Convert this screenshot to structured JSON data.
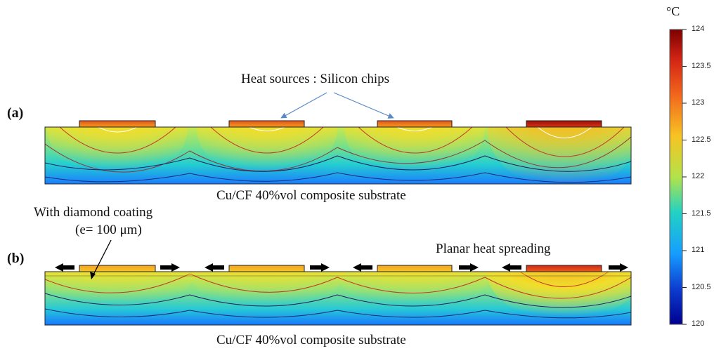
{
  "panels": [
    {
      "label": "(a)",
      "substrate_caption": "Cu/CF 40%vol composite substrate",
      "annotation": "Heat sources : Silicon chips"
    },
    {
      "label": "(b)",
      "substrate_caption": "Cu/CF 40%vol composite substrate",
      "annotation": "Planar heat spreading",
      "coating_label_line1": "With diamond coating",
      "coating_label_line2": "(e= 100 μm)"
    }
  ],
  "colorbar": {
    "unit": "°C",
    "min": 120,
    "max": 124,
    "ticks": [
      "124",
      "123.5",
      "123",
      "122.5",
      "122",
      "121.5",
      "121",
      "120.5",
      "120"
    ]
  },
  "colors": {
    "min": "#00008f",
    "low": "#0b5cff",
    "mid": "#21d2c6",
    "midhigh": "#a6e04e",
    "high": "#f9d21b",
    "hot": "#e8441a",
    "max": "#7d0000",
    "contour": "#c0392b",
    "contour_dark": "#202060"
  }
}
